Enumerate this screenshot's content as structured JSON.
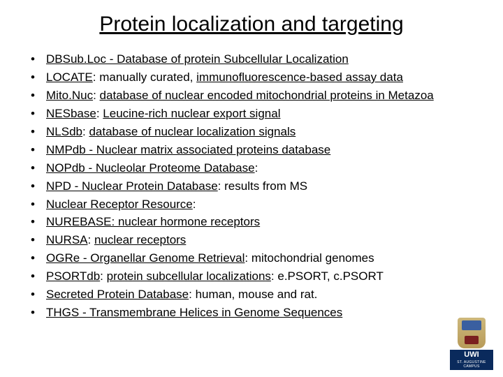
{
  "title": "Protein localization and targeting",
  "text_color": "#000000",
  "background_color": "#ffffff",
  "title_fontsize": 30,
  "body_fontsize": 17,
  "bullets": [
    {
      "html": "<span class='u'>DBSub.Loc - Database of protein Subcellular Localization</span>"
    },
    {
      "html": "<span class='u'>LOCATE</span>: manually curated, <span class='u'>immunofluorescence-based assay data</span>"
    },
    {
      "html": "<span class='u'>Mito.Nuc</span>: <span class='u'>database of nuclear encoded mitochondrial proteins in Metazoa</span>"
    },
    {
      "html": "<span class='u'>NESbase</span>: <span class='u'>Leucine-rich nuclear export signal</span>"
    },
    {
      "html": "<span class='u'>NLSdb</span>: <span class='u'>database of nuclear localization signals</span>"
    },
    {
      "html": "<span class='u'>NMPdb - Nuclear matrix associated proteins database</span>"
    },
    {
      "html": "<span class='u'>NOPdb - Nucleolar Proteome Database</span>:"
    },
    {
      "html": "<span class='u'>NPD - Nuclear Protein Database</span>: results from MS"
    },
    {
      "html": "<span class='u'>Nuclear Receptor Resource</span>:"
    },
    {
      "html": "<span class='u'>NUREBASE: nuclear hormone receptors</span>"
    },
    {
      "html": "<span class='u'>NURSA</span>: <span class='u'>nuclear receptors</span>"
    },
    {
      "html": "<span class='u'>OGRe - Organellar Genome Retrieval</span>: mitochondrial genomes"
    },
    {
      "html": "<span class='u'>PSORTdb</span>: <span class='u'>protein subcellular localizations</span>: e.PSORT, c.PSORT"
    },
    {
      "html": "<span class='u'>Secreted Protein Database</span>: human, mouse and rat."
    },
    {
      "html": "<span class='u'>THGS - Transmembrane Helices in Genome Sequences</span>"
    }
  ],
  "logo": {
    "label": "UWI",
    "sublabel": "ST. AUGUSTINE CAMPUS",
    "band_color": "#0a2a5c"
  }
}
